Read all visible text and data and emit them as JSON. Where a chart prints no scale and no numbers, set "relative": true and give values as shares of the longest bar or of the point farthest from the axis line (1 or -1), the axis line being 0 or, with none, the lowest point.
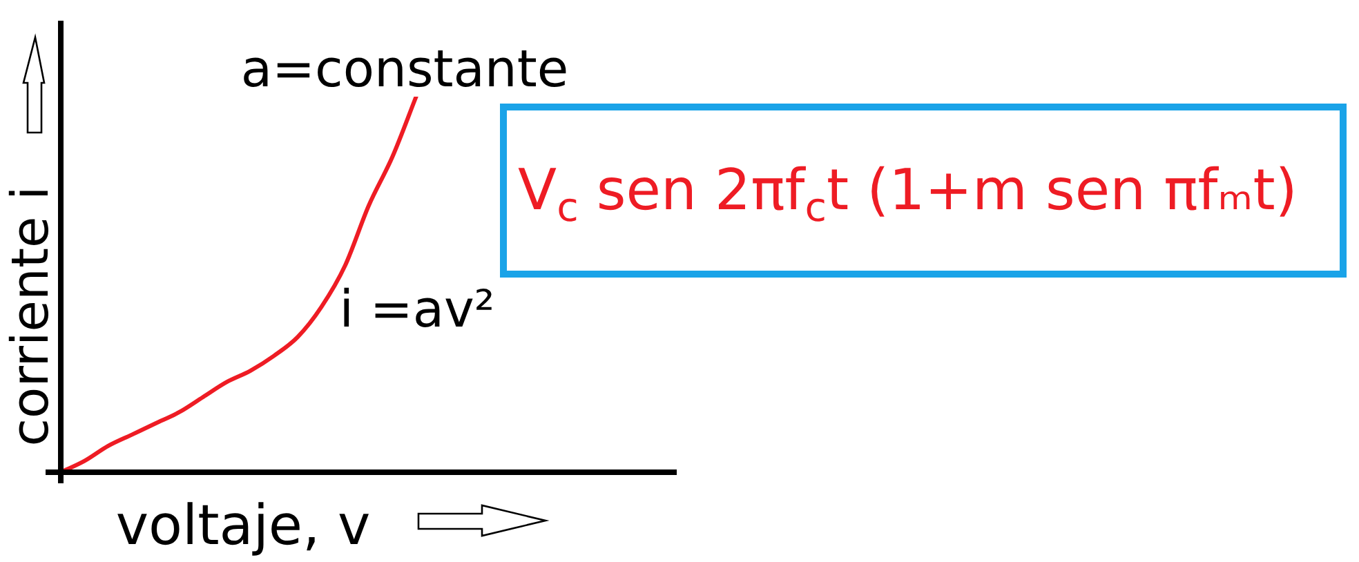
{
  "chart_data": {
    "type": "line",
    "relative": true,
    "xlabel": "voltaje, v",
    "ylabel": "corriente i",
    "annotations": [
      "a=constante",
      "i =av²",
      "V$_{c}$ sen 2πf$_{c}$t (1+m sen πfₘt)"
    ],
    "categories": [
      null,
      null,
      null,
      null,
      null,
      null,
      null,
      null,
      null,
      null,
      null,
      null,
      null,
      null,
      null,
      null,
      null,
      null,
      null,
      null,
      null,
      null,
      null,
      null,
      null,
      null,
      null
    ],
    "color": "#ee1c24",
    "values": [
      0,
      0.03,
      0.07,
      0.1,
      0.13,
      0.16,
      0.2,
      0.24,
      0.27,
      0.31,
      0.36,
      0.44,
      0.55,
      0.71,
      0.84,
      1,
      null,
      null,
      null,
      null,
      null,
      null,
      null,
      null,
      null,
      null,
      null
    ]
  }
}
